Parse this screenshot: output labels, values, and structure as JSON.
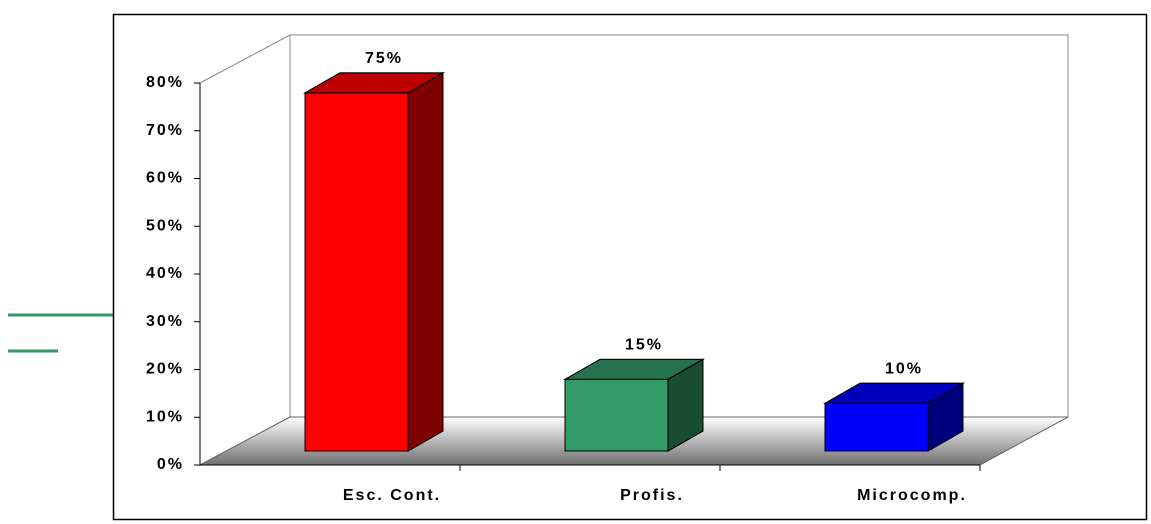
{
  "chart_data": {
    "type": "bar3d",
    "categories": [
      "Esc. Cont.",
      "Profis.",
      "Microcomp."
    ],
    "values": [
      75,
      15,
      10
    ],
    "value_labels": [
      "75%",
      "15%",
      "10%"
    ],
    "colors": [
      "#ff0000",
      "#339966",
      "#0000ff"
    ],
    "ylim": [
      0,
      80
    ],
    "yticks": [
      {
        "value": 0,
        "label": "0%"
      },
      {
        "value": 10,
        "label": "10%"
      },
      {
        "value": 20,
        "label": "20%"
      },
      {
        "value": 30,
        "label": "30%"
      },
      {
        "value": 40,
        "label": "40%"
      },
      {
        "value": 50,
        "label": "50%"
      },
      {
        "value": 60,
        "label": "60%"
      },
      {
        "value": 70,
        "label": "70%"
      },
      {
        "value": 80,
        "label": "80%"
      }
    ]
  }
}
